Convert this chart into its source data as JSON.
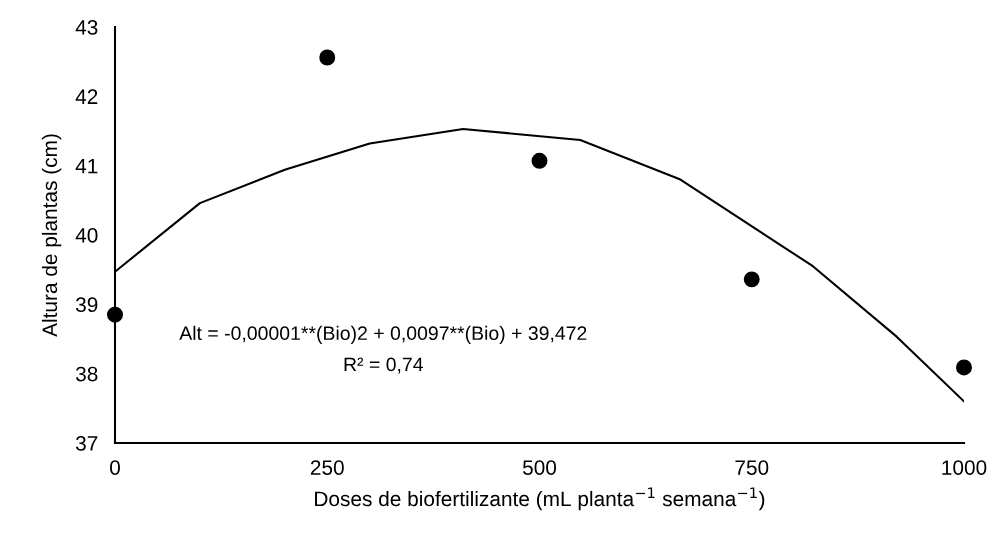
{
  "chart_data": {
    "type": "scatter",
    "xlabel": "Doses de biofertilizante (mL planta$^{−1}$ semana$^{−1}$)",
    "ylabel": "Altura de plantas (cm)",
    "x": [
      0,
      250,
      500,
      750,
      1000
    ],
    "series": [
      {
        "color": "#000000",
        "marker": "circle",
        "values": [
          38.85,
          42.56,
          41.07,
          39.36,
          38.09
        ]
      },
      {
        "type": "line",
        "color": "#000000",
        "marker": "none",
        "line_style": "solid",
        "x": [
          0,
          100,
          200,
          300,
          410,
          548,
          666,
          822,
          921,
          1000
        ],
        "values": [
          39.47,
          40.46,
          40.94,
          41.32,
          41.53,
          41.37,
          40.8,
          39.55,
          38.53,
          37.6
        ]
      }
    ],
    "xlim": [
      0,
      1000
    ],
    "ylim": [
      37,
      43
    ],
    "xticks": [
      0,
      250,
      500,
      750,
      1000
    ],
    "yticks": [
      37,
      38,
      39,
      40,
      41,
      42,
      43
    ],
    "grid": false,
    "legend": false,
    "annotations": [
      "Alt = -0,00001**(Bio)2 + 0,0097**(Bio) + 39,472",
      "R² = 0,74"
    ]
  }
}
